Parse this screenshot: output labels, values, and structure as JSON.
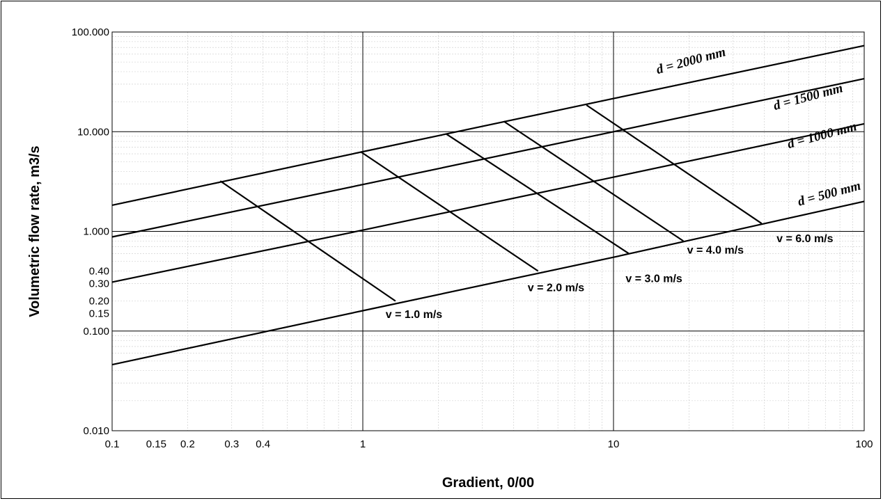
{
  "chart_data": {
    "type": "line",
    "x_scale": "log",
    "y_scale": "log",
    "xlim": [
      0.1,
      100
    ],
    "ylim": [
      0.01,
      100
    ],
    "xlabel": "Gradient, 0/00",
    "ylabel": "Volumetric flow rate, m3/s",
    "grid": true,
    "x_ticks": [
      {
        "value": 0.1,
        "label": "0.1"
      },
      {
        "value": 0.15,
        "label": "0.15"
      },
      {
        "value": 0.2,
        "label": "0.2"
      },
      {
        "value": 0.3,
        "label": "0.3"
      },
      {
        "value": 0.4,
        "label": "0.4"
      },
      {
        "value": 1,
        "label": "1"
      },
      {
        "value": 10,
        "label": "10"
      },
      {
        "value": 100,
        "label": "100"
      }
    ],
    "y_ticks": [
      {
        "value": 100,
        "label": "100.000"
      },
      {
        "value": 10,
        "label": "10.000"
      },
      {
        "value": 1,
        "label": "1.000"
      },
      {
        "value": 0.4,
        "label": "0.40"
      },
      {
        "value": 0.3,
        "label": "0.30"
      },
      {
        "value": 0.2,
        "label": "0.20"
      },
      {
        "value": 0.15,
        "label": "0.15"
      },
      {
        "value": 0.1,
        "label": "0.100"
      },
      {
        "value": 0.01,
        "label": "0.010"
      }
    ],
    "series": [
      {
        "name": "d = 2000 mm",
        "x": [
          0.1,
          1,
          10,
          100
        ],
        "y": [
          1.83,
          6.3,
          21.5,
          73
        ]
      },
      {
        "name": "d = 1500 mm",
        "x": [
          0.1,
          1,
          10,
          100
        ],
        "y": [
          0.88,
          2.95,
          10.0,
          34
        ]
      },
      {
        "name": "d = 1000 mm",
        "x": [
          0.1,
          1,
          10,
          100
        ],
        "y": [
          0.31,
          1.03,
          3.5,
          12
        ]
      },
      {
        "name": "d = 500 mm",
        "x": [
          0.1,
          1,
          10,
          100
        ],
        "y": [
          0.046,
          0.16,
          0.55,
          2.0
        ]
      }
    ],
    "velocity_lines": [
      {
        "label": "v = 1.0 m/s",
        "x": [
          0.27,
          1.35
        ],
        "y": [
          3.2,
          0.2
        ]
      },
      {
        "label": "v = 2.0 m/s",
        "x": [
          0.98,
          5.0
        ],
        "y": [
          6.3,
          0.4
        ]
      },
      {
        "label": "v = 3.0 m/s",
        "x": [
          2.15,
          11.5
        ],
        "y": [
          9.5,
          0.6
        ]
      },
      {
        "label": "v = 4.0 m/s",
        "x": [
          3.65,
          19
        ],
        "y": [
          12.7,
          0.8
        ]
      },
      {
        "label": "v = 6.0 m/s",
        "x": [
          7.8,
          39
        ],
        "y": [
          18.5,
          1.2
        ]
      }
    ]
  }
}
